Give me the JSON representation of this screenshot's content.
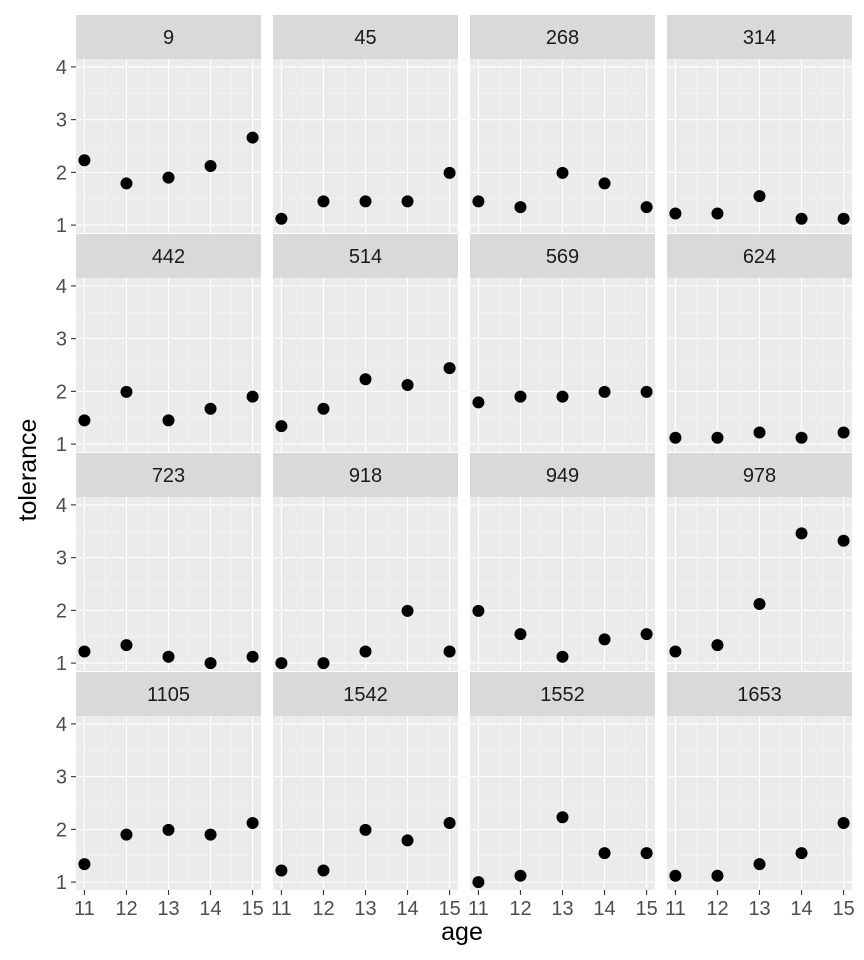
{
  "chart_data": {
    "type": "scatter",
    "xlabel": "age",
    "ylabel": "tolerance",
    "x_ticks": [
      11,
      12,
      13,
      14,
      15
    ],
    "y_ticks": [
      1,
      2,
      3,
      4
    ],
    "xlim": [
      10.8,
      15.2
    ],
    "ylim": [
      0.85,
      4.15
    ],
    "grid": true,
    "layout": "4x4 facet grid",
    "facets": [
      {
        "id": "9",
        "x": [
          11,
          12,
          13,
          14,
          15
        ],
        "y": [
          2.23,
          1.79,
          1.9,
          2.12,
          2.66
        ]
      },
      {
        "id": "45",
        "x": [
          11,
          12,
          13,
          14,
          15
        ],
        "y": [
          1.12,
          1.45,
          1.45,
          1.45,
          1.99
        ]
      },
      {
        "id": "268",
        "x": [
          11,
          12,
          13,
          14,
          15
        ],
        "y": [
          1.45,
          1.34,
          1.99,
          1.79,
          1.34
        ]
      },
      {
        "id": "314",
        "x": [
          11,
          12,
          13,
          14,
          15
        ],
        "y": [
          1.22,
          1.22,
          1.55,
          1.12,
          1.12
        ]
      },
      {
        "id": "442",
        "x": [
          11,
          12,
          13,
          14,
          15
        ],
        "y": [
          1.45,
          1.99,
          1.45,
          1.67,
          1.9
        ]
      },
      {
        "id": "514",
        "x": [
          11,
          12,
          13,
          14,
          15
        ],
        "y": [
          1.34,
          1.67,
          2.23,
          2.12,
          2.44
        ]
      },
      {
        "id": "569",
        "x": [
          11,
          12,
          13,
          14,
          15
        ],
        "y": [
          1.79,
          1.9,
          1.9,
          1.99,
          1.99
        ]
      },
      {
        "id": "624",
        "x": [
          11,
          12,
          13,
          14,
          15
        ],
        "y": [
          1.12,
          1.12,
          1.22,
          1.12,
          1.22
        ]
      },
      {
        "id": "723",
        "x": [
          11,
          12,
          13,
          14,
          15
        ],
        "y": [
          1.22,
          1.34,
          1.12,
          1.0,
          1.12
        ]
      },
      {
        "id": "918",
        "x": [
          11,
          12,
          13,
          14,
          15
        ],
        "y": [
          1.0,
          1.0,
          1.22,
          1.99,
          1.22
        ]
      },
      {
        "id": "949",
        "x": [
          11,
          12,
          13,
          14,
          15
        ],
        "y": [
          1.99,
          1.55,
          1.12,
          1.45,
          1.55
        ]
      },
      {
        "id": "978",
        "x": [
          11,
          12,
          13,
          14,
          15
        ],
        "y": [
          1.22,
          1.34,
          2.12,
          3.46,
          3.32
        ]
      },
      {
        "id": "1105",
        "x": [
          11,
          12,
          13,
          14,
          15
        ],
        "y": [
          1.34,
          1.9,
          1.99,
          1.9,
          2.12
        ]
      },
      {
        "id": "1542",
        "x": [
          11,
          12,
          13,
          14,
          15
        ],
        "y": [
          1.22,
          1.22,
          1.99,
          1.79,
          2.12
        ]
      },
      {
        "id": "1552",
        "x": [
          11,
          12,
          13,
          14,
          15
        ],
        "y": [
          1.0,
          1.12,
          2.23,
          1.55,
          1.55
        ]
      },
      {
        "id": "1653",
        "x": [
          11,
          12,
          13,
          14,
          15
        ],
        "y": [
          1.12,
          1.12,
          1.34,
          1.55,
          2.12
        ]
      }
    ]
  }
}
